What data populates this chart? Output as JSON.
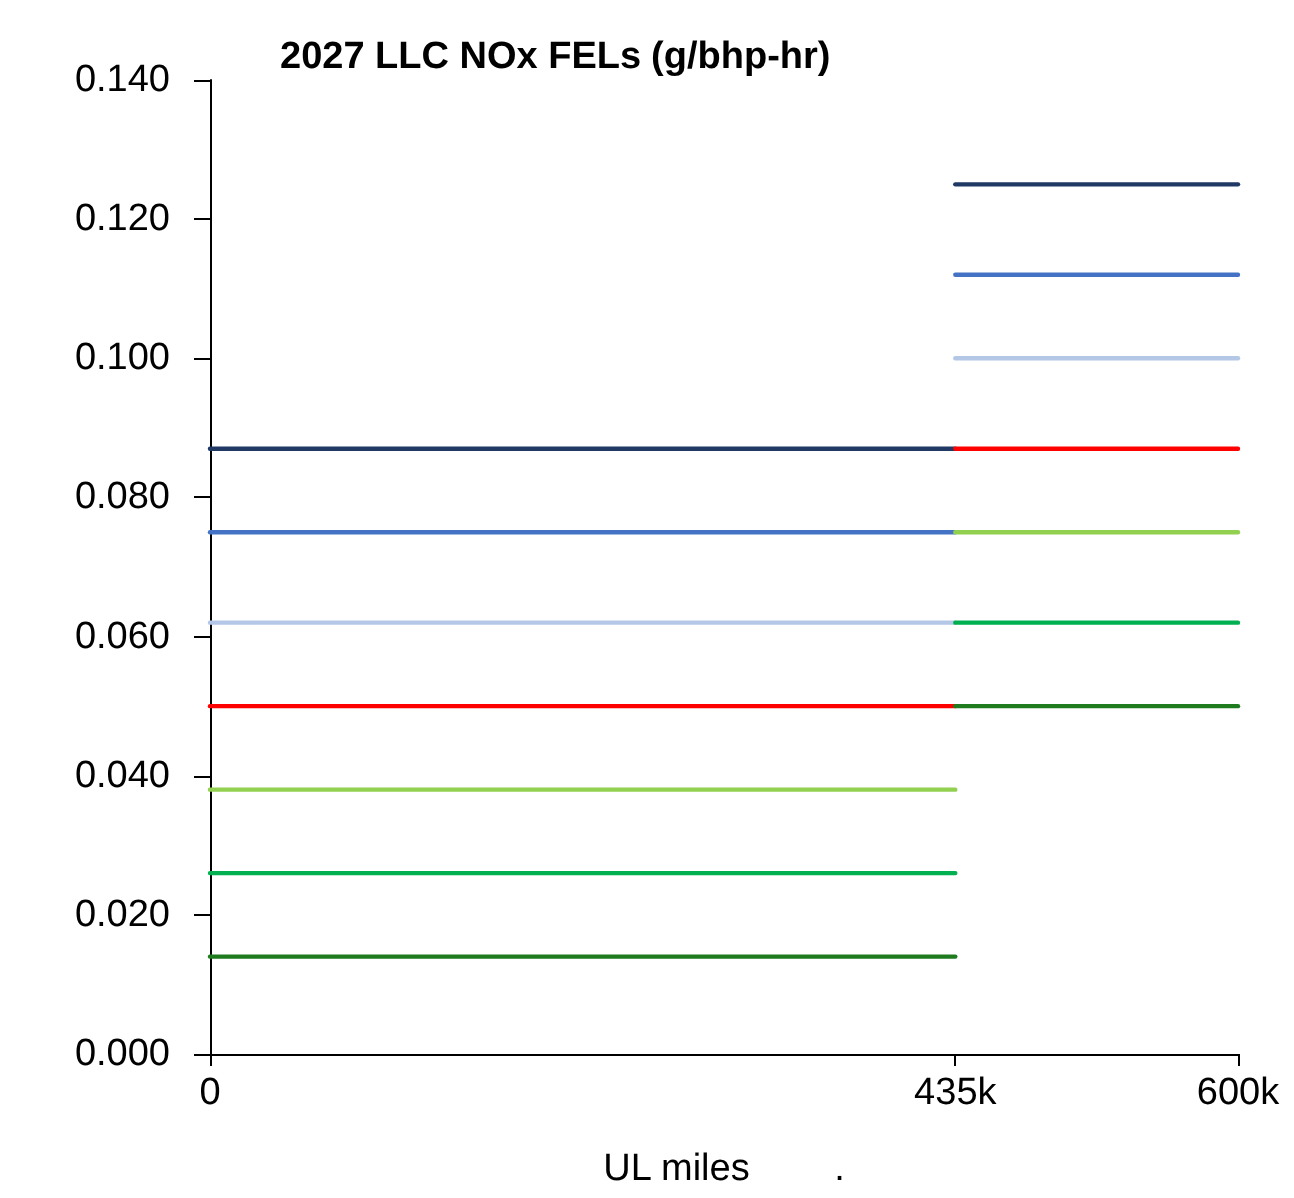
{
  "chart_data": {
    "type": "line",
    "title": "2027 LLC NOx FELs",
    "subtitle": "(g/bhp-hr)",
    "xlabel": "UL miles        .",
    "xlim": [
      0,
      600000
    ],
    "xticks": [
      {
        "value": 0,
        "label": "0"
      },
      {
        "value": 435000,
        "label": "435k"
      },
      {
        "value": 600000,
        "label": "600k"
      }
    ],
    "ylim": [
      0,
      0.14
    ],
    "yticks": [
      {
        "value": 0,
        "label": "0.000"
      },
      {
        "value": 0.02,
        "label": "0.020"
      },
      {
        "value": 0.04,
        "label": "0.040"
      },
      {
        "value": 0.06,
        "label": "0.060"
      },
      {
        "value": 0.08,
        "label": "0.080"
      },
      {
        "value": 0.1,
        "label": "0.100"
      },
      {
        "value": 0.12,
        "label": "0.120"
      },
      {
        "value": 0.14,
        "label": "0.140"
      }
    ],
    "marker": "none",
    "line_style": "solid",
    "series": [
      {
        "color": "#1f3864",
        "x": [
          0,
          435000
        ],
        "values": [
          0.087,
          0.087
        ]
      },
      {
        "color": "#4472c4",
        "x": [
          0,
          435000
        ],
        "values": [
          0.075,
          0.075
        ]
      },
      {
        "color": "#b4c7e7",
        "x": [
          0,
          435000
        ],
        "values": [
          0.062,
          0.062
        ]
      },
      {
        "color": "#ff0000",
        "x": [
          0,
          435000
        ],
        "values": [
          0.05,
          0.05
        ]
      },
      {
        "color": "#92d050",
        "x": [
          0,
          435000
        ],
        "values": [
          0.038,
          0.038
        ]
      },
      {
        "color": "#00b050",
        "x": [
          0,
          435000
        ],
        "values": [
          0.026,
          0.026
        ]
      },
      {
        "color": "#1e7b1e",
        "x": [
          0,
          435000
        ],
        "values": [
          0.014,
          0.014
        ]
      },
      {
        "color": "#1f3864",
        "x": [
          435000,
          600000
        ],
        "values": [
          0.125,
          0.125
        ]
      },
      {
        "color": "#4472c4",
        "x": [
          435000,
          600000
        ],
        "values": [
          0.112,
          0.112
        ]
      },
      {
        "color": "#b4c7e7",
        "x": [
          435000,
          600000
        ],
        "values": [
          0.1,
          0.1
        ]
      },
      {
        "color": "#ff0000",
        "x": [
          435000,
          600000
        ],
        "values": [
          0.087,
          0.087
        ]
      },
      {
        "color": "#92d050",
        "x": [
          435000,
          600000
        ],
        "values": [
          0.075,
          0.075
        ]
      },
      {
        "color": "#00b050",
        "x": [
          435000,
          600000
        ],
        "values": [
          0.062,
          0.062
        ]
      },
      {
        "color": "#1e7b1e",
        "x": [
          435000,
          600000
        ],
        "values": [
          0.05,
          0.05
        ]
      }
    ]
  }
}
